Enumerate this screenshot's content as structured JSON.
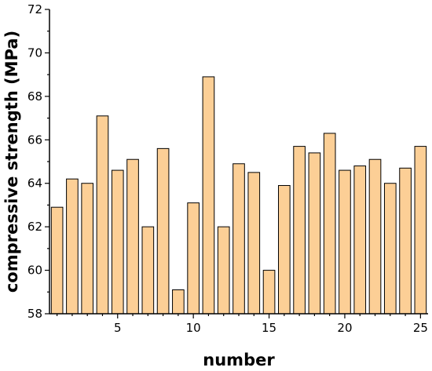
{
  "chart_data": {
    "type": "bar",
    "xlabel": "number",
    "ylabel": "compressive strength (MPa)",
    "ylim": [
      58,
      72
    ],
    "y_ticks": [
      58,
      60,
      62,
      64,
      66,
      68,
      70,
      72
    ],
    "xlim": [
      0.5,
      25.5
    ],
    "x_ticks": [
      5,
      10,
      15,
      20,
      25
    ],
    "categories": [
      1,
      2,
      3,
      4,
      5,
      6,
      7,
      8,
      9,
      10,
      11,
      12,
      13,
      14,
      15,
      16,
      17,
      18,
      19,
      20,
      21,
      22,
      23,
      24,
      25
    ],
    "values": [
      62.9,
      64.2,
      64.0,
      67.1,
      64.6,
      65.1,
      62.0,
      65.6,
      59.1,
      63.1,
      68.9,
      62.0,
      64.9,
      64.5,
      60.0,
      63.9,
      65.7,
      65.4,
      66.3,
      64.6,
      64.8,
      65.1,
      64.0,
      64.7,
      65.7
    ],
    "bar_color": "#FCCF96",
    "bar_stroke": "#000000",
    "grid": false
  }
}
